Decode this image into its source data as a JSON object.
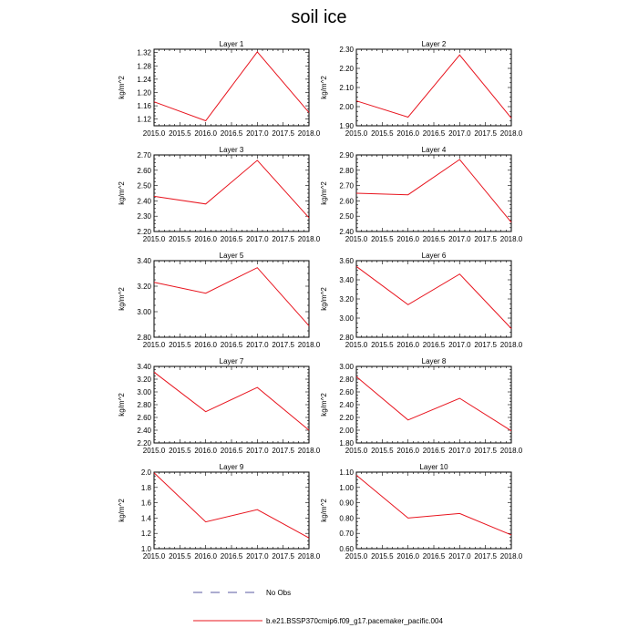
{
  "figure": {
    "title": "soil ice",
    "legend": {
      "position": "bottom",
      "entries": [
        {
          "label": "No Obs",
          "style": "dashed",
          "color": "#5a5aa0"
        },
        {
          "label": "b.e21.BSSP370cmip6.f09_g17.pacemaker_pacific.004",
          "style": "solid",
          "color": "#e8141e"
        }
      ]
    }
  },
  "chart_data": [
    {
      "type": "line",
      "title": "Layer 1",
      "ylabel": "kg/m^2",
      "x": [
        2015.0,
        2016.0,
        2017.0,
        2018.0
      ],
      "xlim": [
        2015.0,
        2018.0
      ],
      "xticks": [
        "2015.0",
        "2015.5",
        "2016.0",
        "2016.5",
        "2017.0",
        "2017.5",
        "2018.0"
      ],
      "ylim": [
        1.1,
        1.33
      ],
      "yticks": [
        "1.12",
        "1.16",
        "1.20",
        "1.24",
        "1.28",
        "1.32"
      ],
      "ytick_values": [
        1.12,
        1.16,
        1.2,
        1.24,
        1.28,
        1.32
      ],
      "series": [
        {
          "values": [
            1.172,
            1.115,
            1.322,
            1.14
          ],
          "color": "#e8141e"
        }
      ]
    },
    {
      "type": "line",
      "title": "Layer 2",
      "ylabel": "kg/m^2",
      "x": [
        2015.0,
        2016.0,
        2017.0,
        2018.0
      ],
      "xlim": [
        2015.0,
        2018.0
      ],
      "xticks": [
        "2015.0",
        "2015.5",
        "2016.0",
        "2016.5",
        "2017.0",
        "2017.5",
        "2018.0"
      ],
      "ylim": [
        1.9,
        2.3
      ],
      "yticks": [
        "1.90",
        "2.00",
        "2.10",
        "2.20",
        "2.30"
      ],
      "ytick_values": [
        1.9,
        2.0,
        2.1,
        2.2,
        2.3
      ],
      "series": [
        {
          "values": [
            2.03,
            1.945,
            2.27,
            1.94
          ],
          "color": "#e8141e"
        }
      ]
    },
    {
      "type": "line",
      "title": "Layer 3",
      "ylabel": "kg/m^2",
      "x": [
        2015.0,
        2016.0,
        2017.0,
        2018.0
      ],
      "xlim": [
        2015.0,
        2018.0
      ],
      "xticks": [
        "2015.0",
        "2015.5",
        "2016.0",
        "2016.5",
        "2017.0",
        "2017.5",
        "2018.0"
      ],
      "ylim": [
        2.2,
        2.7
      ],
      "yticks": [
        "2.20",
        "2.30",
        "2.40",
        "2.50",
        "2.60",
        "2.70"
      ],
      "ytick_values": [
        2.2,
        2.3,
        2.4,
        2.5,
        2.6,
        2.7
      ],
      "series": [
        {
          "values": [
            2.43,
            2.38,
            2.665,
            2.29
          ],
          "color": "#e8141e"
        }
      ]
    },
    {
      "type": "line",
      "title": "Layer 4",
      "ylabel": "kg/m^2",
      "x": [
        2015.0,
        2016.0,
        2017.0,
        2018.0
      ],
      "xlim": [
        2015.0,
        2018.0
      ],
      "xticks": [
        "2015.0",
        "2015.5",
        "2016.0",
        "2016.5",
        "2017.0",
        "2017.5",
        "2018.0"
      ],
      "ylim": [
        2.4,
        2.9
      ],
      "yticks": [
        "2.40",
        "2.50",
        "2.60",
        "2.70",
        "2.80",
        "2.90"
      ],
      "ytick_values": [
        2.4,
        2.5,
        2.6,
        2.7,
        2.8,
        2.9
      ],
      "series": [
        {
          "values": [
            2.65,
            2.64,
            2.87,
            2.46
          ],
          "color": "#e8141e"
        }
      ]
    },
    {
      "type": "line",
      "title": "Layer 5",
      "ylabel": "kg/m^2",
      "x": [
        2015.0,
        2016.0,
        2017.0,
        2018.0
      ],
      "xlim": [
        2015.0,
        2018.0
      ],
      "xticks": [
        "2015.0",
        "2015.5",
        "2016.0",
        "2016.5",
        "2017.0",
        "2017.5",
        "2018.0"
      ],
      "ylim": [
        2.8,
        3.4
      ],
      "yticks": [
        "2.80",
        "3.00",
        "3.20",
        "3.40"
      ],
      "ytick_values": [
        2.8,
        3.0,
        3.2,
        3.4
      ],
      "series": [
        {
          "values": [
            3.23,
            3.145,
            3.345,
            2.89
          ],
          "color": "#e8141e"
        }
      ]
    },
    {
      "type": "line",
      "title": "Layer 6",
      "ylabel": "kg/m^2",
      "x": [
        2015.0,
        2016.0,
        2017.0,
        2018.0
      ],
      "xlim": [
        2015.0,
        2018.0
      ],
      "xticks": [
        "2015.0",
        "2015.5",
        "2016.0",
        "2016.5",
        "2017.0",
        "2017.5",
        "2018.0"
      ],
      "ylim": [
        2.8,
        3.6
      ],
      "yticks": [
        "2.80",
        "3.00",
        "3.20",
        "3.40",
        "3.60"
      ],
      "ytick_values": [
        2.8,
        3.0,
        3.2,
        3.4,
        3.6
      ],
      "series": [
        {
          "values": [
            3.54,
            3.14,
            3.46,
            2.89
          ],
          "color": "#e8141e"
        }
      ]
    },
    {
      "type": "line",
      "title": "Layer 7",
      "ylabel": "kg/m^2",
      "x": [
        2015.0,
        2016.0,
        2017.0,
        2018.0
      ],
      "xlim": [
        2015.0,
        2018.0
      ],
      "xticks": [
        "2015.0",
        "2015.5",
        "2016.0",
        "2016.5",
        "2017.0",
        "2017.5",
        "2018.0"
      ],
      "ylim": [
        2.2,
        3.4
      ],
      "yticks": [
        "2.20",
        "2.40",
        "2.60",
        "2.80",
        "3.00",
        "3.20",
        "3.40"
      ],
      "ytick_values": [
        2.2,
        2.4,
        2.6,
        2.8,
        3.0,
        3.2,
        3.4
      ],
      "series": [
        {
          "values": [
            3.31,
            2.69,
            3.07,
            2.4
          ],
          "color": "#e8141e"
        }
      ]
    },
    {
      "type": "line",
      "title": "Layer 8",
      "ylabel": "kg/m^2",
      "x": [
        2015.0,
        2016.0,
        2017.0,
        2018.0
      ],
      "xlim": [
        2015.0,
        2018.0
      ],
      "xticks": [
        "2015.0",
        "2015.5",
        "2016.0",
        "2016.5",
        "2017.0",
        "2017.5",
        "2018.0"
      ],
      "ylim": [
        1.8,
        3.0
      ],
      "yticks": [
        "1.80",
        "2.00",
        "2.20",
        "2.40",
        "2.60",
        "2.80",
        "3.00"
      ],
      "ytick_values": [
        1.8,
        2.0,
        2.2,
        2.4,
        2.6,
        2.8,
        3.0
      ],
      "series": [
        {
          "values": [
            2.84,
            2.16,
            2.5,
            1.99
          ],
          "color": "#e8141e"
        }
      ]
    },
    {
      "type": "line",
      "title": "Layer 9",
      "ylabel": "kg/m^2",
      "x": [
        2015.0,
        2016.0,
        2017.0,
        2018.0
      ],
      "xlim": [
        2015.0,
        2018.0
      ],
      "xticks": [
        "2015.0",
        "2015.5",
        "2016.0",
        "2016.5",
        "2017.0",
        "2017.5",
        "2018.0"
      ],
      "ylim": [
        1.0,
        2.0
      ],
      "yticks": [
        "1.0",
        "1.2",
        "1.4",
        "1.6",
        "1.8",
        "2.0"
      ],
      "ytick_values": [
        1.0,
        1.2,
        1.4,
        1.6,
        1.8,
        2.0
      ],
      "series": [
        {
          "values": [
            1.99,
            1.35,
            1.51,
            1.14
          ],
          "color": "#e8141e"
        }
      ]
    },
    {
      "type": "line",
      "title": "Layer 10",
      "ylabel": "kg/m^2",
      "x": [
        2015.0,
        2016.0,
        2017.0,
        2018.0
      ],
      "xlim": [
        2015.0,
        2018.0
      ],
      "xticks": [
        "2015.0",
        "2015.5",
        "2016.0",
        "2016.5",
        "2017.0",
        "2017.5",
        "2018.0"
      ],
      "ylim": [
        0.6,
        1.1
      ],
      "yticks": [
        "0.60",
        "0.70",
        "0.80",
        "0.90",
        "1.00",
        "1.10"
      ],
      "ytick_values": [
        0.6,
        0.7,
        0.8,
        0.9,
        1.0,
        1.1
      ],
      "series": [
        {
          "values": [
            1.08,
            0.8,
            0.83,
            0.69
          ],
          "color": "#e8141e"
        }
      ]
    }
  ]
}
